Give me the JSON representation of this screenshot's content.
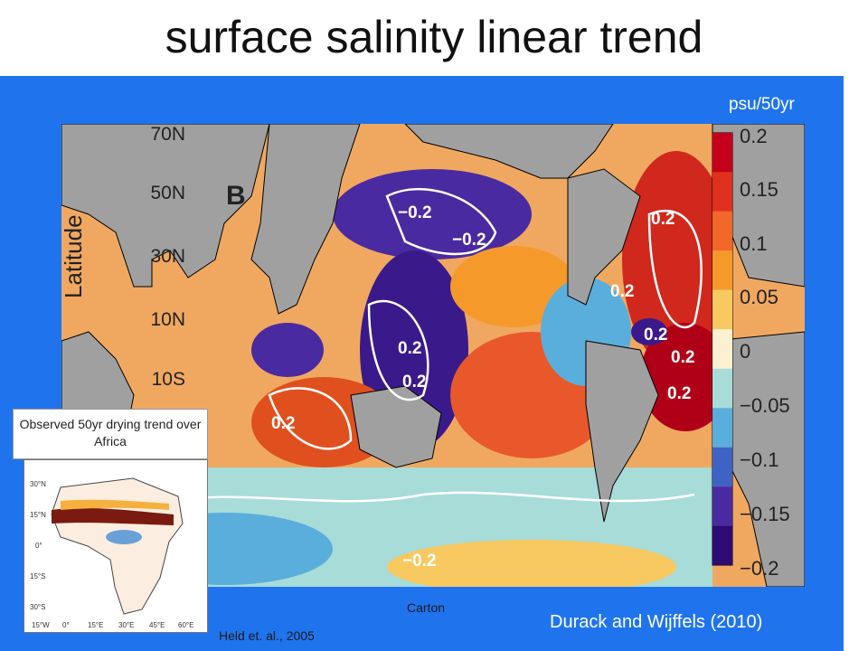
{
  "title": "surface salinity linear trend",
  "units": "psu/50yr",
  "panel_letter": "B",
  "y_axis_label": "Latitude",
  "latitude_ticks": [
    "70N",
    "50N",
    "30N",
    "10N",
    "10S"
  ],
  "colorbar_ticks": [
    "0.2",
    "0.15",
    "0.1",
    "0.05",
    "0",
    "−0.05",
    "−0.1",
    "−0.15",
    "−0.2"
  ],
  "colorbar_colors": [
    "#c4001a",
    "#e0301e",
    "#f0682a",
    "#f59a2a",
    "#f7c960",
    "#fbf0d0",
    "#a8dcd8",
    "#5aaedc",
    "#3f63c4",
    "#4a2aa0",
    "#2e0a72"
  ],
  "contour_labels": [
    "−0.2",
    "−0.2",
    "0.2",
    "0.2",
    "0.2",
    "0.2",
    "0.2",
    "0.2",
    "0.2",
    "0.2",
    "−0.2"
  ],
  "inset": {
    "caption": "Observed 50yr drying trend over Africa",
    "lat_ticks": [
      "30°N",
      "15°N",
      "0°",
      "15°S",
      "30°S"
    ],
    "lon_ticks": [
      "15°W",
      "0°",
      "15°E",
      "30°E",
      "45°E",
      "60°E"
    ]
  },
  "citations": {
    "held": "Held et. al., 2005",
    "carton": "Carton",
    "durack": "Durack and Wijffels (2010)"
  }
}
